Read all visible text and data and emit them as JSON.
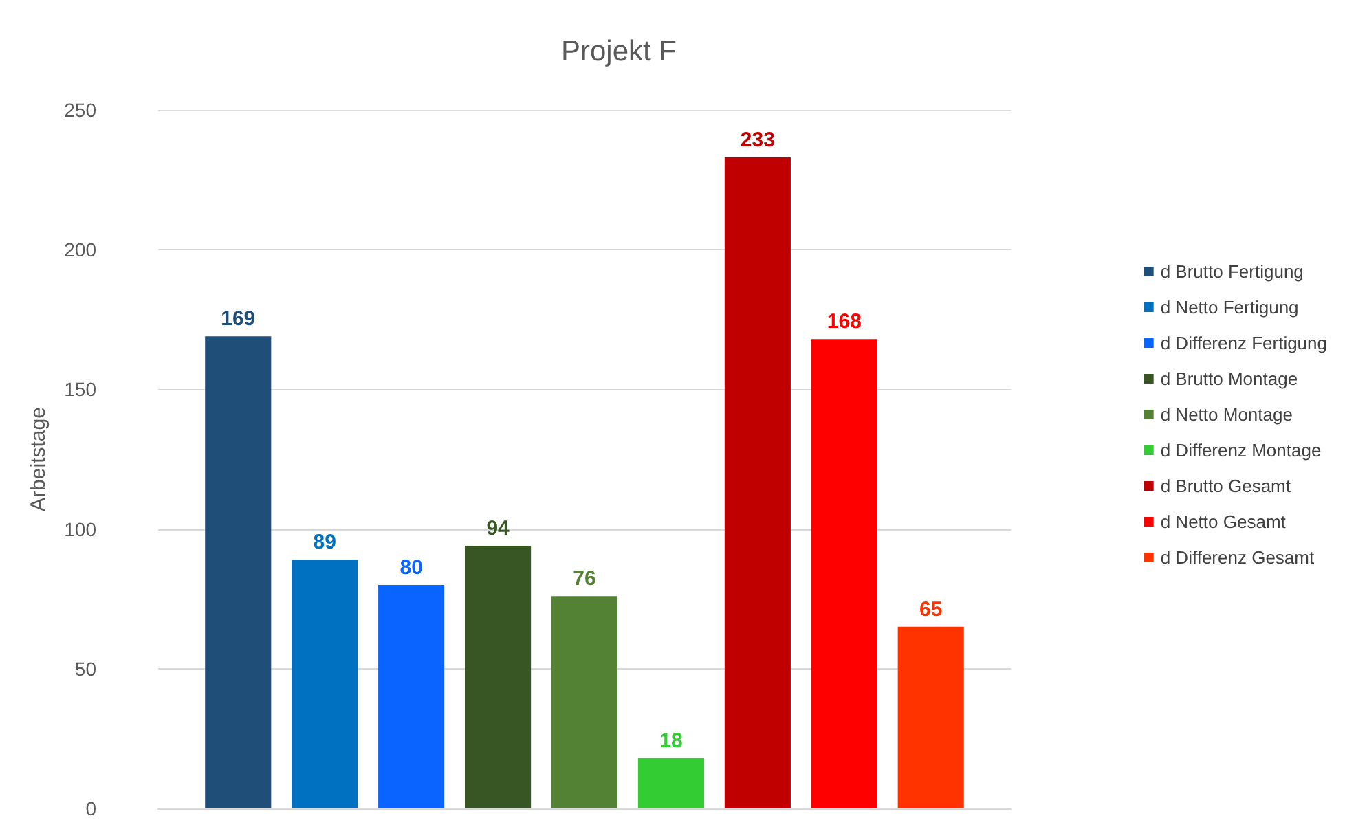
{
  "chart_data": {
    "type": "bar",
    "title": "Projekt F",
    "ylabel": "Arbeitstage",
    "categories": [
      null
    ],
    "series": [
      {
        "name": "d Brutto Fertigung",
        "color": "#1f4e79",
        "values": [
          169
        ]
      },
      {
        "name": "d Netto Fertigung",
        "color": "#0070c0",
        "values": [
          89
        ]
      },
      {
        "name": "d Differenz Fertigung",
        "color": "#0a64ff",
        "values": [
          80
        ]
      },
      {
        "name": "d Brutto Montage",
        "color": "#375623",
        "values": [
          94
        ]
      },
      {
        "name": "d Netto Montage",
        "color": "#548235",
        "values": [
          76
        ]
      },
      {
        "name": "d Differenz Montage",
        "color": "#33cc33",
        "values": [
          18
        ]
      },
      {
        "name": "d Brutto Gesamt",
        "color": "#c00000",
        "values": [
          233
        ]
      },
      {
        "name": "d Netto Gesamt",
        "color": "#ff0000",
        "values": [
          168
        ]
      },
      {
        "name": "d Differenz Gesamt",
        "color": "#ff3300",
        "values": [
          65
        ]
      }
    ],
    "ylim": [
      0,
      250
    ],
    "yticks": [
      0,
      50,
      100,
      150,
      200,
      250
    ],
    "grid": "y",
    "legend": "right",
    "data_labels": true
  }
}
